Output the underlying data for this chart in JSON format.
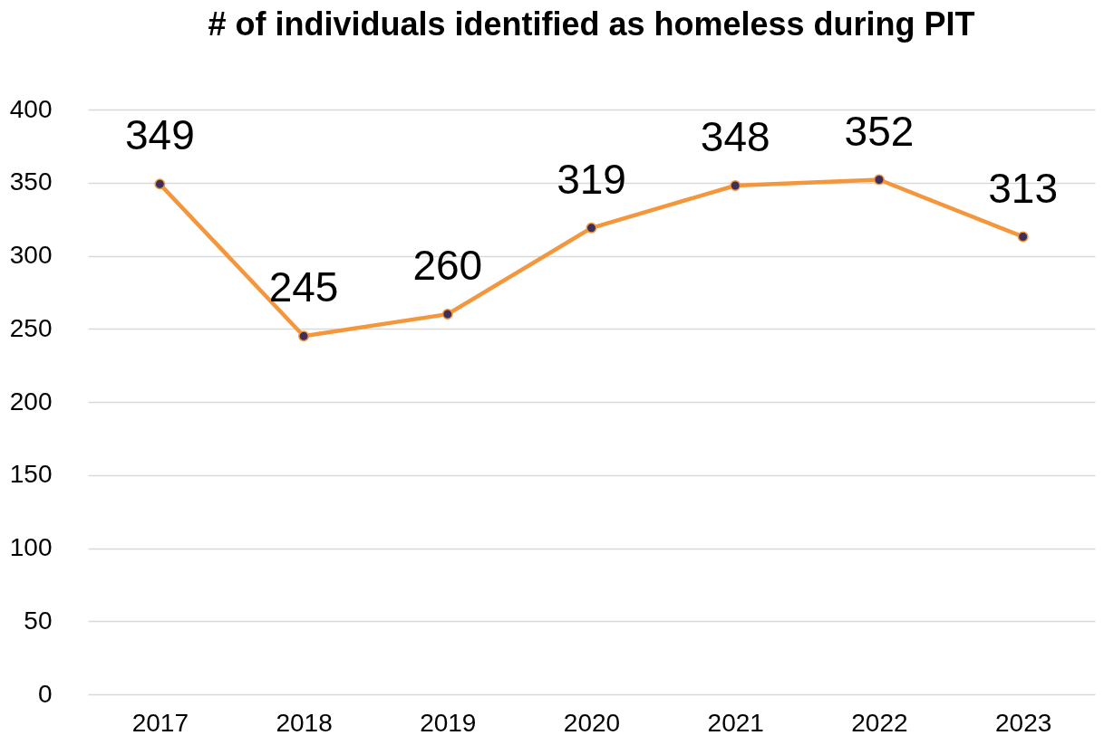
{
  "chart_data": {
    "type": "line",
    "title": "# of individuals identified as homeless during PIT",
    "categories": [
      "2017",
      "2018",
      "2019",
      "2020",
      "2021",
      "2022",
      "2023"
    ],
    "series": [
      {
        "color": "#f4963c",
        "values": [
          349,
          245,
          260,
          319,
          348,
          352,
          313
        ]
      }
    ],
    "ylim": [
      0,
      400
    ],
    "yticks": [
      0,
      50,
      100,
      150,
      200,
      250,
      300,
      350,
      400
    ],
    "grid": "y",
    "marker": "circle",
    "line_style": "solid",
    "data_labels": true
  }
}
